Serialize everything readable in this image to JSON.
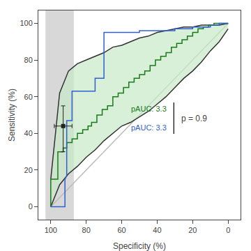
{
  "chart_data": {
    "type": "line",
    "xlabel": "Specificity (%)",
    "ylabel": "Sensitivity (%)",
    "xlim": [
      107,
      -7
    ],
    "ylim": [
      -7,
      107
    ],
    "xticks": [
      100,
      80,
      60,
      40,
      20,
      0
    ],
    "yticks": [
      0,
      20,
      40,
      60,
      80,
      100
    ],
    "grid": false,
    "legend": false,
    "series": [
      {
        "type": "region",
        "x": [
          87,
          103
        ],
        "color": "#d8d8d8"
      },
      {
        "type": "line",
        "x": [
          100,
          0
        ],
        "values": [
          0,
          100
        ],
        "color": "#bbbbbb"
      },
      {
        "type": "band",
        "x": [
          100,
          95,
          90,
          85,
          80,
          75,
          70,
          65,
          60,
          55,
          50,
          45,
          40,
          35,
          30,
          25,
          20,
          15,
          10,
          5,
          0
        ],
        "upper": [
          15,
          62,
          74,
          78,
          80,
          82,
          84,
          87,
          88,
          90,
          92,
          93,
          95,
          96,
          97,
          98,
          98,
          99,
          99,
          99,
          100
        ],
        "lower": [
          0,
          12,
          18,
          22,
          27,
          31,
          36,
          40,
          44,
          46,
          49,
          52,
          56,
          60,
          65,
          70,
          74,
          79,
          85,
          90,
          97
        ],
        "color": "#c8e8c8"
      },
      {
        "type": "line",
        "x": [
          100,
          95,
          90,
          85,
          80,
          75,
          70,
          65,
          60,
          55,
          50,
          45,
          40,
          35,
          30,
          25,
          20,
          15,
          10,
          5,
          0
        ],
        "values": [
          15,
          62,
          74,
          78,
          80,
          82,
          84,
          87,
          88,
          90,
          92,
          93,
          95,
          96,
          97,
          98,
          98,
          99,
          99,
          99,
          100
        ],
        "color": "#333333"
      },
      {
        "type": "line",
        "x": [
          100,
          95,
          90,
          85,
          80,
          75,
          70,
          65,
          60,
          55,
          50,
          45,
          40,
          35,
          30,
          25,
          20,
          15,
          10,
          5,
          0
        ],
        "values": [
          0,
          12,
          18,
          22,
          27,
          31,
          36,
          40,
          44,
          46,
          49,
          52,
          56,
          60,
          65,
          70,
          74,
          79,
          85,
          90,
          97
        ],
        "color": "#333333"
      },
      {
        "type": "line",
        "x": [
          100,
          100,
          96,
          96,
          93,
          93,
          91,
          91,
          88,
          88,
          85,
          85,
          82,
          82,
          79,
          79,
          77,
          77,
          74,
          74,
          71,
          71,
          68,
          68,
          65,
          65,
          62,
          62,
          59,
          59,
          56,
          56,
          53,
          53,
          50,
          50,
          47,
          47,
          44,
          44,
          41,
          41,
          38,
          38,
          35,
          35,
          32,
          32,
          29,
          29,
          26,
          26,
          23,
          23,
          20,
          20,
          17,
          17,
          14,
          14,
          11,
          11,
          8,
          8,
          5,
          5,
          2,
          2,
          0
        ],
        "values": [
          0,
          15,
          15,
          30,
          30,
          32,
          32,
          35,
          35,
          37,
          37,
          40,
          40,
          42,
          42,
          44,
          44,
          46,
          46,
          50,
          50,
          53,
          53,
          55,
          55,
          60,
          60,
          62,
          62,
          65,
          65,
          68,
          68,
          70,
          70,
          72,
          72,
          74,
          74,
          77,
          77,
          80,
          80,
          82,
          82,
          84,
          84,
          87,
          87,
          89,
          89,
          91,
          91,
          93,
          93,
          95,
          95,
          97,
          97,
          98,
          98,
          99,
          99,
          100,
          100,
          100,
          100,
          100,
          100
        ],
        "color": "#1a7a1a"
      },
      {
        "type": "line",
        "x": [
          100,
          92,
          92,
          91,
          91,
          88,
          88,
          75,
          75,
          70,
          70,
          50,
          50,
          30,
          30,
          20,
          20,
          10,
          10,
          5,
          5,
          0
        ],
        "values": [
          0,
          0,
          15,
          17,
          47,
          47,
          63,
          63,
          70,
          70,
          95,
          95,
          96,
          96,
          97,
          97,
          98,
          98,
          99,
          99,
          100,
          100
        ],
        "color": "#3060d0"
      },
      {
        "type": "scatter",
        "marker": "square",
        "x": [
          93
        ],
        "values": [
          44
        ],
        "color": "#222222",
        "error_x": [
          5
        ],
        "error_y_minus": [
          14
        ],
        "error_y_plus": [
          11
        ]
      }
    ],
    "annotations": [
      {
        "text": "pAUC: 3.3",
        "color": "#1a7a1a"
      },
      {
        "text": "pAUC: 3.3",
        "color": "#3060d0"
      },
      {
        "text": "p = 0.9"
      }
    ]
  }
}
